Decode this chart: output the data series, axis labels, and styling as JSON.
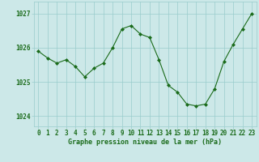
{
  "x": [
    0,
    1,
    2,
    3,
    4,
    5,
    6,
    7,
    8,
    9,
    10,
    11,
    12,
    13,
    14,
    15,
    16,
    17,
    18,
    19,
    20,
    21,
    22,
    23
  ],
  "y": [
    1025.9,
    1025.7,
    1025.55,
    1025.65,
    1025.45,
    1025.15,
    1025.4,
    1025.55,
    1026.0,
    1026.55,
    1026.65,
    1026.4,
    1026.3,
    1025.65,
    1024.9,
    1024.7,
    1024.35,
    1024.3,
    1024.35,
    1024.8,
    1025.6,
    1026.1,
    1026.55,
    1027.0
  ],
  "line_color": "#1a6b1a",
  "marker_color": "#1a6b1a",
  "bg_color": "#cce8e8",
  "grid_color": "#99cccc",
  "xlabel": "Graphe pression niveau de la mer (hPa)",
  "ylabel_ticks": [
    1024,
    1025,
    1026,
    1027
  ],
  "ylim": [
    1023.7,
    1027.35
  ],
  "xlim": [
    -0.5,
    23.5
  ],
  "xlabel_color": "#1a6b1a",
  "tick_color": "#1a6b1a",
  "tick_fontsize": 5.5,
  "xlabel_fontsize": 6.0
}
